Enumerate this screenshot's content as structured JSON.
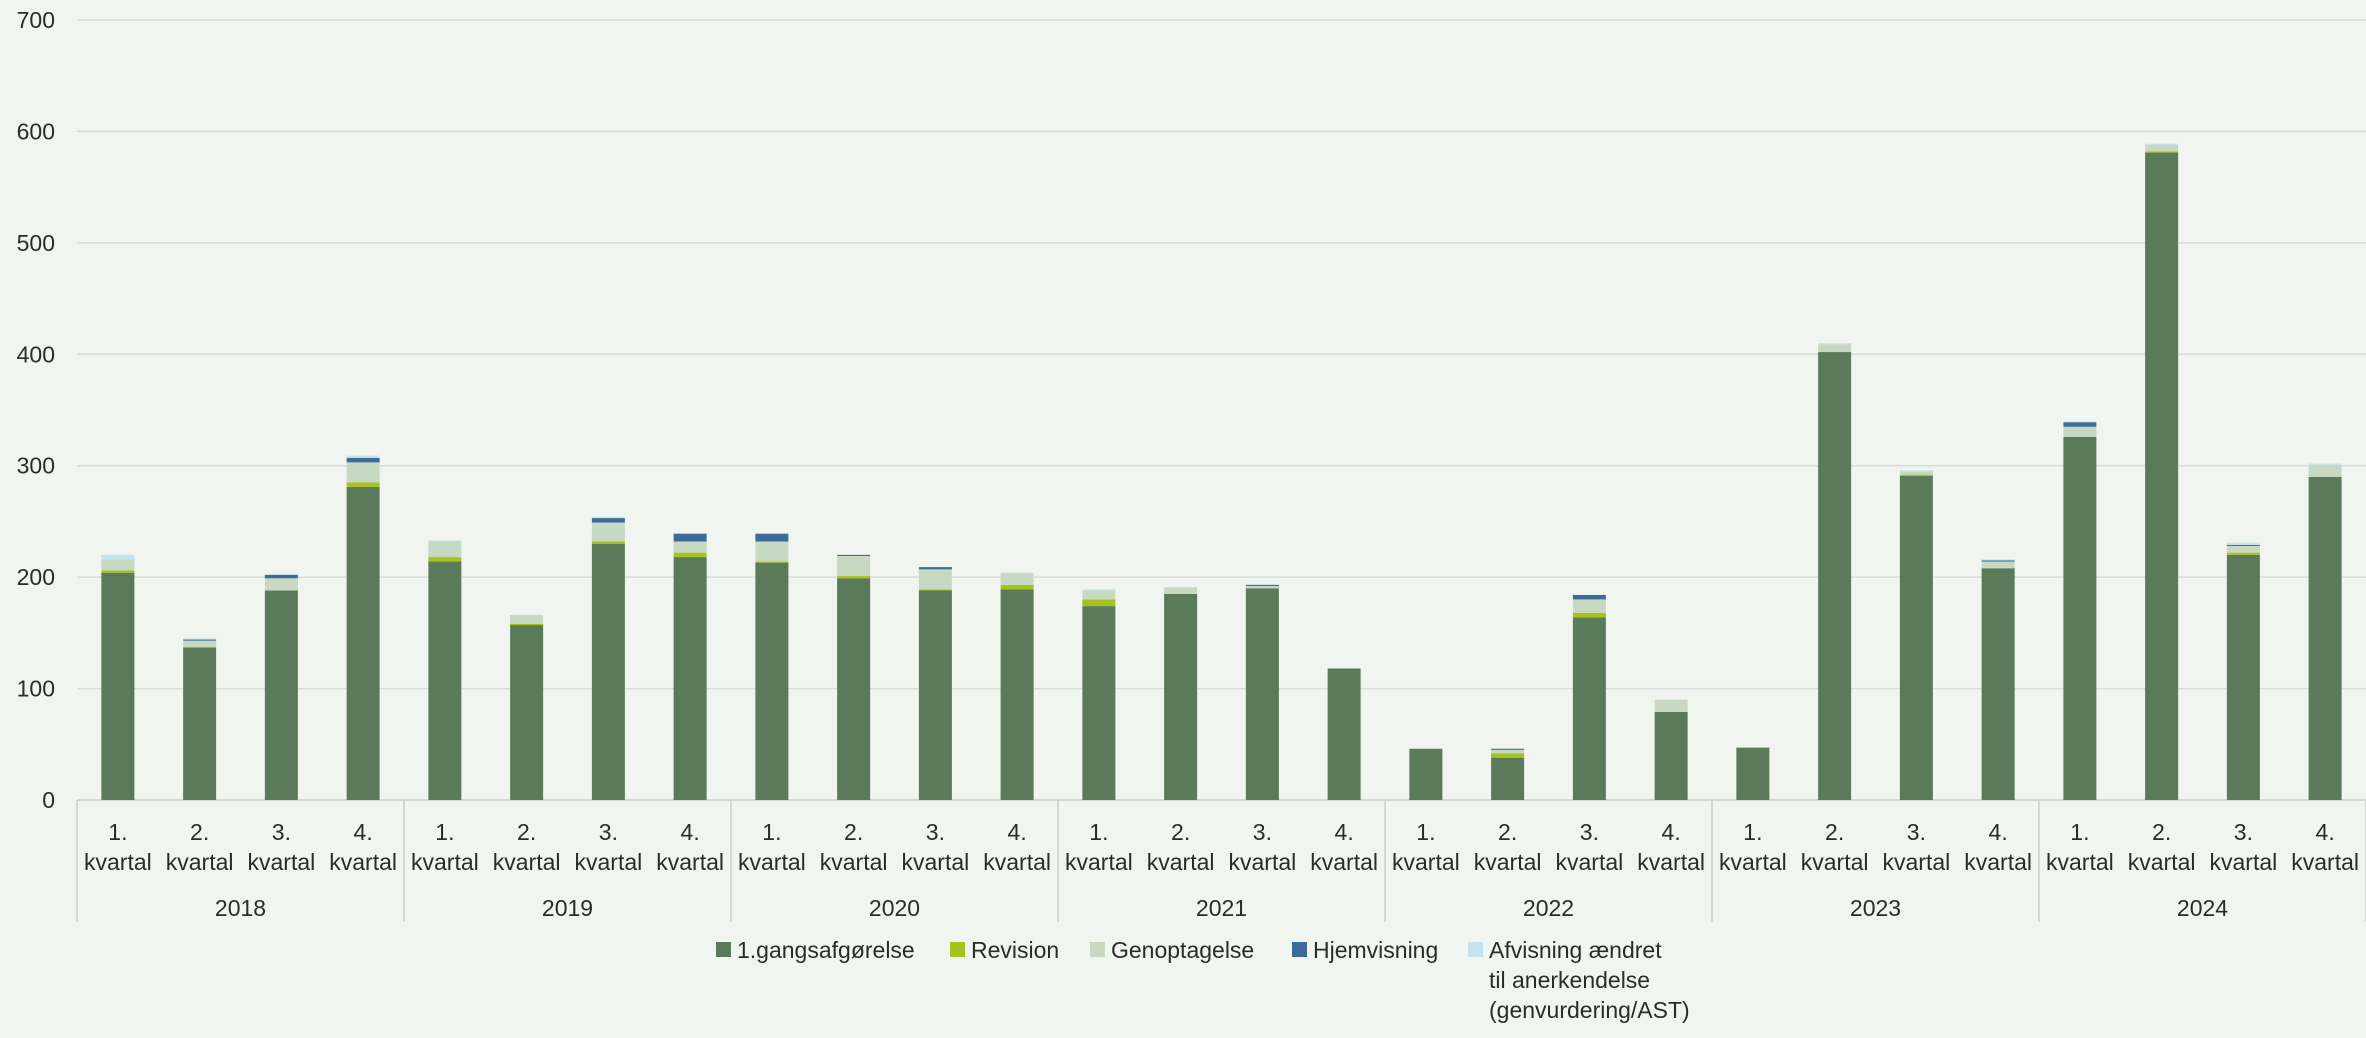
{
  "chart_data": {
    "type": "bar",
    "stacked": true,
    "title": "",
    "xlabel": "",
    "ylabel": "",
    "ylim": [
      0,
      700
    ],
    "yticks": [
      0,
      100,
      200,
      300,
      400,
      500,
      600,
      700
    ],
    "grid": true,
    "legend_position": "bottom",
    "years": [
      "2018",
      "2019",
      "2020",
      "2021",
      "2022",
      "2023",
      "2024"
    ],
    "quarter_labels": [
      "1.",
      "2.",
      "3.",
      "4."
    ],
    "quarter_word": "kvartal",
    "series": [
      {
        "name": "1.gangsafgørelse",
        "color": "#5a7a5a",
        "values": [
          204,
          137,
          188,
          281,
          214,
          157,
          230,
          218,
          213,
          199,
          188,
          189,
          174,
          185,
          190,
          118,
          46,
          38,
          164,
          79,
          47,
          402,
          291,
          208,
          326,
          581,
          220,
          290
        ]
      },
      {
        "name": "Revision",
        "color": "#a5c21f",
        "values": [
          2,
          0,
          0,
          4,
          4,
          1,
          2,
          4,
          1,
          2,
          1,
          4,
          6,
          0,
          0,
          0,
          0,
          4,
          4,
          0,
          0,
          0,
          1,
          0,
          0,
          1,
          2,
          0
        ]
      },
      {
        "name": "Genoptagelse",
        "color": "#c8d9c3",
        "values": [
          10,
          6,
          11,
          18,
          14,
          8,
          17,
          10,
          18,
          18,
          18,
          11,
          8,
          6,
          2,
          0,
          0,
          3,
          12,
          11,
          0,
          7,
          3,
          6,
          9,
          6,
          6,
          11
        ]
      },
      {
        "name": "Hjemvisning",
        "color": "#3d6a96",
        "values": [
          0,
          1,
          3,
          4,
          0,
          0,
          4,
          7,
          7,
          1,
          2,
          0,
          0,
          0,
          1,
          0,
          0,
          1,
          4,
          0,
          0,
          0,
          0,
          1,
          4,
          0,
          1,
          0
        ]
      },
      {
        "name": "Afvisning ændret til anerkendelse (genvurdering/AST)",
        "color": "#c5e3ee",
        "values": [
          4,
          1,
          1,
          2,
          1,
          0,
          1,
          0,
          0,
          0,
          0,
          0,
          1,
          0,
          1,
          0,
          0,
          0,
          0,
          0,
          0,
          1,
          1,
          1,
          1,
          1,
          2,
          1
        ]
      }
    ]
  },
  "legend": {
    "items": [
      {
        "lines": [
          "1.gangsafgørelse"
        ],
        "color": "#5a7a5a",
        "icon": "legend-swatch"
      },
      {
        "lines": [
          "Revision"
        ],
        "color": "#a5c21f",
        "icon": "legend-swatch"
      },
      {
        "lines": [
          "Genoptagelse"
        ],
        "color": "#c8d9c3",
        "icon": "legend-swatch"
      },
      {
        "lines": [
          "Hjemvisning"
        ],
        "color": "#3d6a96",
        "icon": "legend-swatch"
      },
      {
        "lines": [
          "Afvisning ændret",
          "til anerkendelse",
          "(genvurdering/AST)"
        ],
        "color": "#c5e3ee",
        "icon": "legend-swatch"
      }
    ]
  },
  "colors": {
    "background": "#f0f5ef",
    "gridline": "#d6dcd6",
    "axis": "#c9cfc9",
    "text": "#2b2b2b"
  }
}
